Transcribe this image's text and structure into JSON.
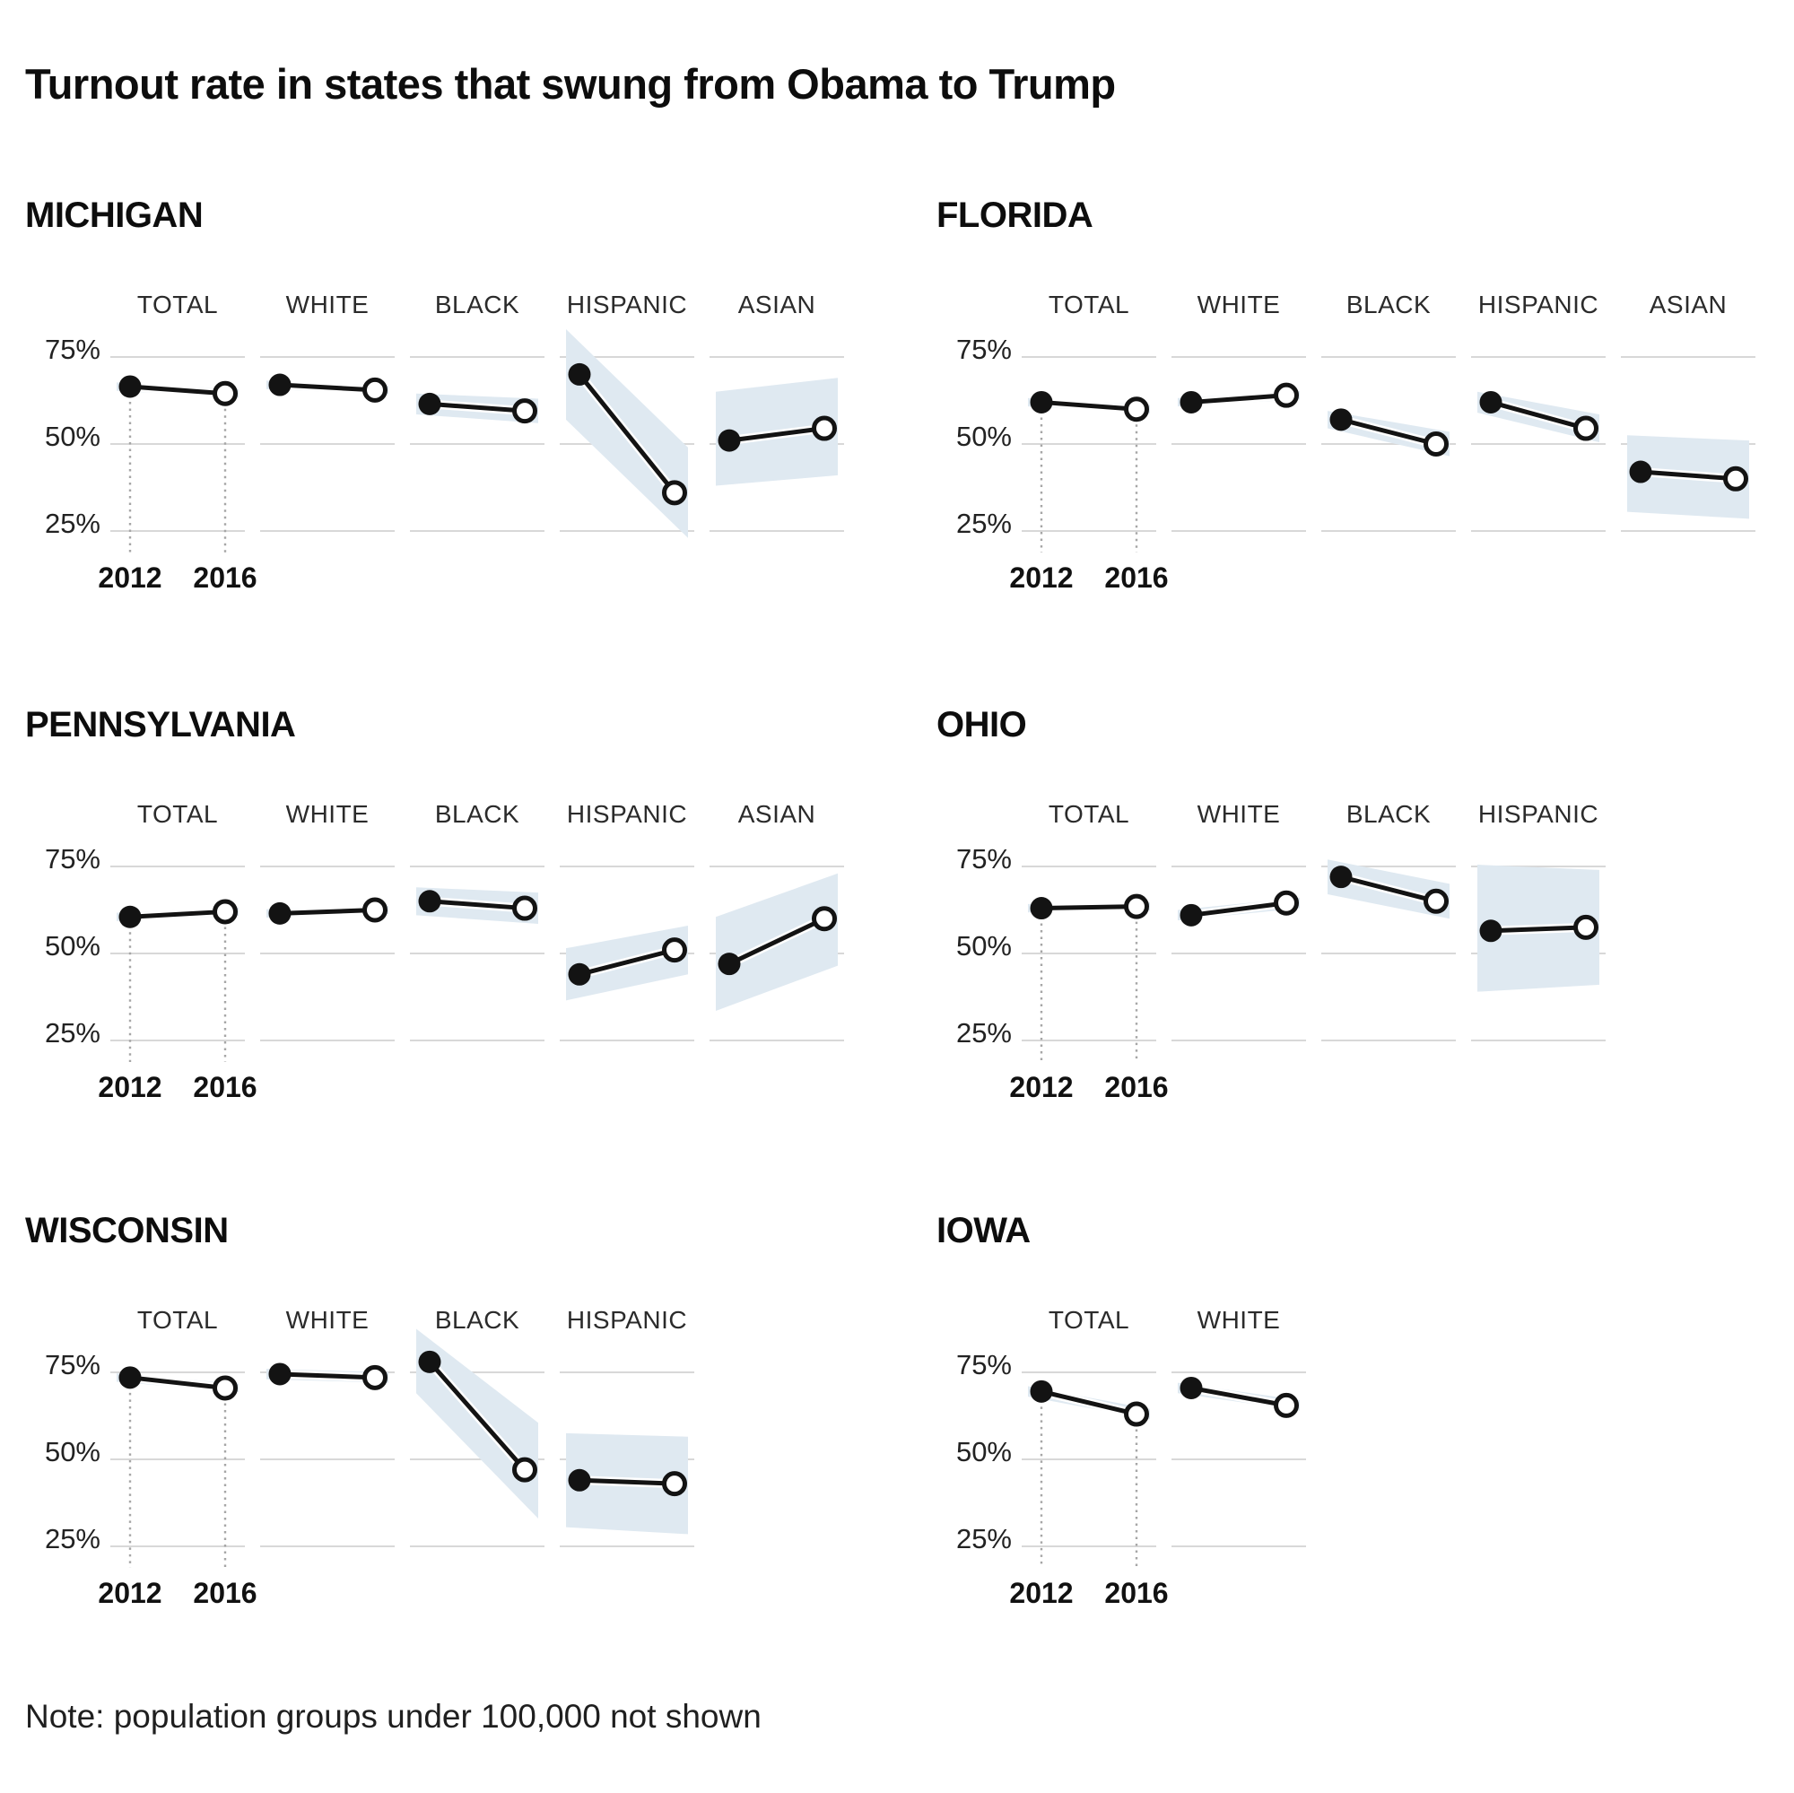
{
  "title": "Turnout rate in states that swung from Obama to Trump",
  "note": "Note: population groups under 100,000 not shown",
  "colors": {
    "band": "#dfe9f1",
    "grid": "#d8d8d8",
    "line": "#131313",
    "dot_2012_fill": "#131313",
    "dot_2016_fill": "#ffffff",
    "dashed_guide": "#a6a6a6",
    "text": "#111111"
  },
  "chart_axis": {
    "y_ticks": [
      {
        "value": 75,
        "label": "75%"
      },
      {
        "value": 50,
        "label": "50%"
      },
      {
        "value": 25,
        "label": "25%"
      }
    ],
    "x_ticks": [
      "2012",
      "2016"
    ],
    "ylim": [
      20,
      80
    ],
    "grid": "segments-per-group",
    "legend": "none"
  },
  "chart_data": [
    {
      "type": "line",
      "state": "MICHIGAN",
      "x": [
        "2012",
        "2016"
      ],
      "groups": [
        {
          "name": "TOTAL",
          "values": [
            66.5,
            64.5
          ],
          "band": [
            65.3,
            67.7,
            63.3,
            65.7
          ]
        },
        {
          "name": "WHITE",
          "values": [
            67.0,
            65.5
          ],
          "band": [
            65.8,
            68.2,
            64.3,
            66.7
          ]
        },
        {
          "name": "BLACK",
          "values": [
            61.5,
            59.5
          ],
          "band": [
            58.5,
            64.5,
            56.0,
            63.0
          ]
        },
        {
          "name": "HISPANIC",
          "values": [
            70.0,
            36.0
          ],
          "band": [
            57.0,
            83.0,
            23.0,
            49.0
          ]
        },
        {
          "name": "ASIAN",
          "values": [
            51.0,
            54.5
          ],
          "band": [
            38.0,
            65.0,
            41.0,
            69.0
          ]
        }
      ]
    },
    {
      "type": "line",
      "state": "FLORIDA",
      "x": [
        "2012",
        "2016"
      ],
      "groups": [
        {
          "name": "TOTAL",
          "values": [
            62.0,
            60.0
          ],
          "band": [
            60.8,
            63.2,
            58.8,
            61.2
          ]
        },
        {
          "name": "WHITE",
          "values": [
            62.0,
            64.0
          ],
          "band": [
            60.8,
            63.2,
            62.8,
            65.2
          ]
        },
        {
          "name": "BLACK",
          "values": [
            57.0,
            50.0
          ],
          "band": [
            54.5,
            59.5,
            46.5,
            53.5
          ]
        },
        {
          "name": "HISPANIC",
          "values": [
            62.0,
            54.5
          ],
          "band": [
            59.0,
            65.0,
            50.5,
            58.5
          ]
        },
        {
          "name": "ASIAN",
          "values": [
            42.0,
            40.0
          ],
          "band": [
            30.5,
            52.5,
            28.5,
            51.0
          ]
        }
      ]
    },
    {
      "type": "line",
      "state": "PENNSYLVANIA",
      "x": [
        "2012",
        "2016"
      ],
      "groups": [
        {
          "name": "TOTAL",
          "values": [
            60.5,
            62.0
          ],
          "band": [
            59.3,
            61.7,
            60.8,
            63.2
          ]
        },
        {
          "name": "WHITE",
          "values": [
            61.5,
            62.5
          ],
          "band": [
            60.3,
            62.7,
            61.3,
            63.7
          ]
        },
        {
          "name": "BLACK",
          "values": [
            65.0,
            63.0
          ],
          "band": [
            61.0,
            69.0,
            58.5,
            67.5
          ]
        },
        {
          "name": "HISPANIC",
          "values": [
            44.0,
            51.0
          ],
          "band": [
            36.5,
            51.5,
            44.0,
            58.0
          ]
        },
        {
          "name": "ASIAN",
          "values": [
            47.0,
            60.0
          ],
          "band": [
            33.5,
            60.5,
            46.5,
            73.0
          ]
        }
      ]
    },
    {
      "type": "line",
      "state": "OHIO",
      "x": [
        "2012",
        "2016"
      ],
      "groups": [
        {
          "name": "TOTAL",
          "values": [
            63.0,
            63.5
          ],
          "band": [
            61.8,
            64.2,
            62.3,
            64.7
          ]
        },
        {
          "name": "WHITE",
          "values": [
            61.0,
            64.5
          ],
          "band": [
            59.5,
            62.5,
            63.0,
            66.0
          ]
        },
        {
          "name": "BLACK",
          "values": [
            72.0,
            65.0
          ],
          "band": [
            67.0,
            77.0,
            60.0,
            70.0
          ]
        },
        {
          "name": "HISPANIC",
          "values": [
            56.5,
            57.5
          ],
          "band": [
            39.0,
            75.5,
            41.0,
            74.0
          ]
        }
      ]
    },
    {
      "type": "line",
      "state": "WISCONSIN",
      "x": [
        "2012",
        "2016"
      ],
      "groups": [
        {
          "name": "TOTAL",
          "values": [
            73.5,
            70.5
          ],
          "band": [
            72.3,
            74.7,
            69.3,
            71.7
          ]
        },
        {
          "name": "WHITE",
          "values": [
            74.5,
            73.5
          ],
          "band": [
            73.0,
            76.0,
            72.0,
            75.0
          ]
        },
        {
          "name": "BLACK",
          "values": [
            78.0,
            47.0
          ],
          "band": [
            69.0,
            87.5,
            33.0,
            60.5
          ]
        },
        {
          "name": "HISPANIC",
          "values": [
            44.0,
            43.0
          ],
          "band": [
            30.5,
            57.5,
            28.5,
            56.5
          ]
        }
      ]
    },
    {
      "type": "line",
      "state": "IOWA",
      "x": [
        "2012",
        "2016"
      ],
      "groups": [
        {
          "name": "TOTAL",
          "values": [
            69.5,
            63.0
          ],
          "band": [
            68.0,
            71.0,
            61.5,
            64.5
          ]
        },
        {
          "name": "WHITE",
          "values": [
            70.5,
            65.5
          ],
          "band": [
            69.0,
            72.0,
            64.0,
            67.0
          ]
        }
      ]
    }
  ]
}
